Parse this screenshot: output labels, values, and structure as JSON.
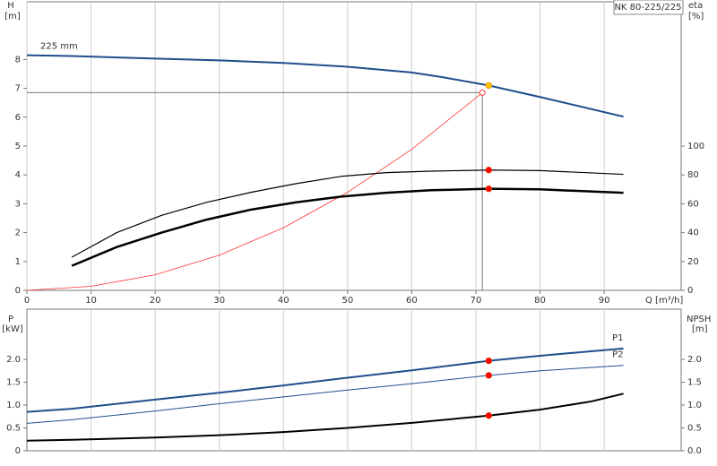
{
  "chart_data": [
    {
      "type": "line",
      "title": "NK 80-225/225",
      "ylabel": "H",
      "yunit": "[m]",
      "y2label": "eta",
      "y2unit": "[%]",
      "xlabel": "Q [m³/h]",
      "xlim": [
        0,
        102
      ],
      "xticks": [
        0,
        10,
        20,
        30,
        40,
        50,
        60,
        70,
        80,
        90
      ],
      "ylim": [
        0,
        10
      ],
      "yticks": [
        0,
        1,
        2,
        3,
        4,
        5,
        6,
        7,
        8
      ],
      "y2lim": [
        0,
        200
      ],
      "y2ticks": [
        0,
        20,
        40,
        60,
        80,
        100
      ],
      "grid": true,
      "series": [
        {
          "name": "225 mm",
          "color": "#1f4e8c",
          "line_width": 2,
          "x": [
            0,
            7,
            20,
            30,
            40,
            50,
            60,
            65,
            72,
            80,
            93
          ],
          "values": [
            8.15,
            8.12,
            8.03,
            7.97,
            7.88,
            7.75,
            7.55,
            7.38,
            7.1,
            6.7,
            6.02
          ]
        },
        {
          "color": "#ff3030",
          "line_width": 0.8,
          "x": [
            0,
            10,
            20,
            30,
            40,
            50,
            60,
            71
          ],
          "values": [
            0,
            0.14,
            0.54,
            1.22,
            2.17,
            3.4,
            4.89,
            6.85
          ]
        },
        {
          "color": "#000000",
          "line_width": 1.2,
          "axis": "y2",
          "x": [
            7,
            14,
            21,
            28,
            35,
            42,
            49,
            56,
            63,
            72,
            80,
            93
          ],
          "values": [
            23,
            40,
            52,
            61,
            68,
            74,
            79,
            81.6,
            82.6,
            83.4,
            83,
            80.4
          ]
        },
        {
          "color": "#000000",
          "line_width": 2.5,
          "axis": "y2",
          "x": [
            7,
            14,
            21,
            28,
            35,
            42,
            49,
            56,
            63,
            72,
            80,
            93
          ],
          "values": [
            17,
            30,
            40,
            49,
            56,
            61,
            65,
            67.6,
            69.4,
            70.4,
            70,
            67.6
          ]
        }
      ],
      "points": [
        {
          "x": 72,
          "y": 7.1,
          "color": "#ffc000"
        },
        {
          "x": 72,
          "y": 83.4,
          "color": "#ff0000",
          "axis": "y2"
        },
        {
          "x": 72,
          "y": 70.4,
          "color": "#ff0000",
          "axis": "y2"
        }
      ],
      "duty_point": {
        "x": 71,
        "y": 6.85
      }
    },
    {
      "type": "line",
      "ylabel": "P",
      "yunit": "[kW]",
      "y2label": "NPSH",
      "y2unit": "[m]",
      "xlim": [
        0,
        102
      ],
      "x_gridlines": [
        10,
        20,
        30,
        40,
        50,
        60,
        70,
        80,
        90
      ],
      "ylim": [
        0,
        3.1
      ],
      "yticks": [
        0,
        0.5,
        {
          "value": 1,
          "label": "1.0"
        },
        1.5,
        {
          "value": 2,
          "label": "2.0"
        }
      ],
      "y2lim": [
        0,
        3.1
      ],
      "y2ticks": [
        {
          "value": 0,
          "label": "0.0"
        },
        0.5,
        {
          "value": 1,
          "label": "1.0"
        },
        1.5,
        {
          "value": 2,
          "label": "2.0"
        }
      ],
      "grid": true,
      "series": [
        {
          "name": "P1",
          "color": "#1f4e8c",
          "line_width": 2,
          "x": [
            0,
            7,
            20,
            30,
            40,
            50,
            60,
            72,
            80,
            93
          ],
          "values": [
            0.85,
            0.92,
            1.12,
            1.27,
            1.43,
            1.6,
            1.76,
            1.97,
            2.08,
            2.24
          ]
        },
        {
          "name": "P2",
          "color": "#1f4e8c",
          "line_width": 1,
          "x": [
            0,
            7,
            20,
            30,
            40,
            50,
            60,
            72,
            80,
            93
          ],
          "values": [
            0.6,
            0.68,
            0.87,
            1.03,
            1.18,
            1.33,
            1.47,
            1.65,
            1.75,
            1.87
          ]
        },
        {
          "color": "#000000",
          "line_width": 2,
          "axis": "y2",
          "x": [
            0,
            7,
            20,
            30,
            40,
            50,
            60,
            72,
            80,
            88,
            93
          ],
          "values": [
            0.22,
            0.24,
            0.29,
            0.34,
            0.41,
            0.5,
            0.61,
            0.77,
            0.9,
            1.08,
            1.25
          ]
        }
      ],
      "points": [
        {
          "x": 72,
          "y": 1.97,
          "color": "#ff0000"
        },
        {
          "x": 72,
          "y": 1.65,
          "color": "#ff0000"
        },
        {
          "x": 72,
          "y": 0.77,
          "color": "#ff0000",
          "axis": "y2"
        }
      ]
    }
  ]
}
